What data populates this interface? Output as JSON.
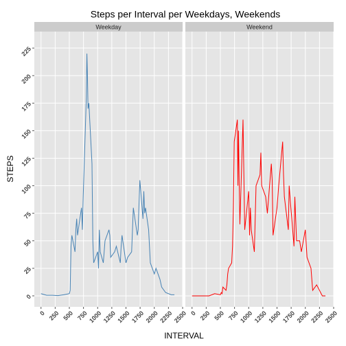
{
  "chart_data": {
    "type": "line",
    "facets": true,
    "title": "Steps per Interval per Weekdays, Weekends",
    "xlabel": "INTERVAL",
    "ylabel": "STEPS",
    "x": [
      0,
      100,
      200,
      300,
      400,
      500,
      515,
      530,
      545,
      600,
      615,
      630,
      645,
      700,
      715,
      730,
      745,
      800,
      810,
      820,
      830,
      845,
      900,
      915,
      930,
      1000,
      1015,
      1030,
      1045,
      1100,
      1130,
      1200,
      1215,
      1230,
      1300,
      1330,
      1400,
      1415,
      1430,
      1500,
      1530,
      1600,
      1615,
      1630,
      1700,
      1715,
      1745,
      1800,
      1815,
      1830,
      1845,
      1900,
      1930,
      2000,
      2030,
      2100,
      2130,
      2200,
      2300,
      2355
    ],
    "series": [
      {
        "name": "Weekday",
        "color": "#4682b4",
        "values": [
          2,
          0.5,
          0.5,
          0.2,
          1,
          2,
          5,
          45,
          55,
          40,
          60,
          70,
          55,
          75,
          80,
          60,
          90,
          180,
          220,
          200,
          170,
          175,
          120,
          50,
          30,
          40,
          25,
          60,
          40,
          30,
          50,
          60,
          55,
          35,
          40,
          45,
          30,
          45,
          55,
          30,
          35,
          40,
          60,
          80,
          55,
          60,
          105,
          70,
          95,
          75,
          80,
          60,
          30,
          20,
          25,
          15,
          8,
          3,
          1,
          1
        ]
      },
      {
        "name": "Weekend",
        "color": "#ff0000",
        "values": [
          0,
          0,
          0,
          0,
          2,
          1,
          3,
          2,
          8,
          5,
          10,
          20,
          25,
          30,
          45,
          80,
          140,
          160,
          100,
          150,
          110,
          65,
          160,
          110,
          60,
          95,
          55,
          80,
          60,
          40,
          100,
          110,
          130,
          100,
          90,
          75,
          120,
          105,
          55,
          80,
          100,
          140,
          110,
          90,
          60,
          100,
          80,
          45,
          90,
          70,
          50,
          50,
          40,
          60,
          35,
          25,
          5,
          10,
          0,
          0
        ]
      }
    ],
    "xlim": [
      -118,
      2500
    ],
    "xticks": [
      0,
      250,
      500,
      750,
      1000,
      1250,
      1500,
      1750,
      2000,
      2250,
      2500
    ],
    "ylim": [
      -10,
      240
    ],
    "yticks": [
      0,
      25,
      50,
      75,
      100,
      125,
      150,
      175,
      200,
      225
    ],
    "grid": true
  }
}
